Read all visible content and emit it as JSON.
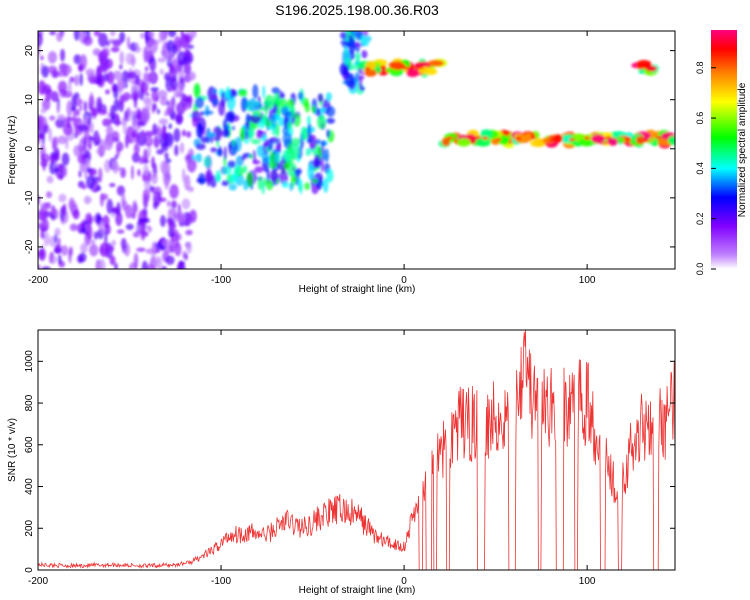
{
  "title": "S196.2025.198.00.36.R03",
  "chart_data": [
    {
      "type": "heatmap",
      "title": "S196.2025.198.00.36.R03",
      "xlabel": "Height of straight line (km)",
      "ylabel": "Frequency (Hz)",
      "xlim": [
        -200,
        148
      ],
      "ylim": [
        -24.5,
        24
      ],
      "x_ticks": [
        "-200",
        "-100",
        "0",
        "100"
      ],
      "y_ticks": [
        "20",
        "10",
        "0",
        "-10",
        "-20"
      ],
      "colorbar": {
        "label": "Normalized spectral amplitude",
        "range": [
          0,
          0.95
        ],
        "ticks": [
          "0.0",
          "0.2",
          "0.4",
          "0.6",
          "0.8"
        ],
        "colors": [
          "#ffffff",
          "#a040ff",
          "#0000ff",
          "#00ffff",
          "#00ff00",
          "#ffff00",
          "#ff8000",
          "#ff0000",
          "#ff0080"
        ]
      },
      "features": [
        {
          "region": "scattered noise",
          "x_range": [
            -200,
            -115
          ],
          "freq_range": [
            -24.5,
            24
          ],
          "amplitude": 0.15
        },
        {
          "region": "diffuse band",
          "x_range": [
            -115,
            -40
          ],
          "freq_range": [
            -8,
            12
          ],
          "amplitude": 0.35
        },
        {
          "region": "blob",
          "x_range": [
            -33,
            -20
          ],
          "freq_range": [
            12,
            24
          ],
          "amplitude": 0.3
        },
        {
          "region": "tone",
          "x_range": [
            -23,
            20
          ],
          "freq_range": [
            14,
            19
          ],
          "amplitude": 0.85
        },
        {
          "region": "tone",
          "x_range": [
            22,
            148
          ],
          "freq_range": [
            0,
            4
          ],
          "amplitude": 0.85
        },
        {
          "region": "tone",
          "x_range": [
            126,
            138
          ],
          "freq_range": [
            15,
            18
          ],
          "amplitude": 0.9
        }
      ]
    },
    {
      "type": "line",
      "xlabel": "Height of straight line (km)",
      "ylabel": "SNR (10 * v/v)",
      "xlim": [
        -200,
        148
      ],
      "ylim": [
        0,
        1150
      ],
      "x_ticks": [
        "-200",
        "-100",
        "0",
        "100"
      ],
      "y_ticks": [
        "0",
        "200",
        "400",
        "600",
        "800",
        "1000"
      ],
      "color": "#ee3333",
      "series": [
        {
          "x": [
            -200,
            -180,
            -160,
            -140,
            -125,
            -115,
            -105,
            -95,
            -85,
            -75,
            -65,
            -55,
            -45,
            -35,
            -25,
            -15,
            -10,
            -5,
            0,
            5,
            10,
            15,
            20,
            25,
            30,
            40,
            50,
            55,
            60,
            62,
            64,
            66,
            68,
            70,
            75,
            80,
            85,
            90,
            95,
            100,
            105,
            110,
            115,
            120,
            125,
            130,
            135,
            140,
            145,
            148
          ],
          "y": [
            25,
            20,
            25,
            20,
            25,
            40,
            80,
            150,
            160,
            150,
            210,
            180,
            230,
            260,
            230,
            140,
            120,
            110,
            100,
            230,
            330,
            420,
            480,
            590,
            620,
            630,
            660,
            650,
            700,
            760,
            860,
            1050,
            830,
            720,
            690,
            700,
            720,
            690,
            710,
            720,
            600,
            470,
            380,
            420,
            530,
            620,
            660,
            620,
            660,
            720
          ]
        }
      ],
      "dropouts_to_zero": [
        [
          8,
          10
        ],
        [
          12,
          15
        ],
        [
          16,
          18
        ],
        [
          23,
          25
        ],
        [
          40,
          44
        ],
        [
          57,
          61
        ],
        [
          73,
          75
        ],
        [
          83,
          87
        ],
        [
          93,
          95
        ],
        [
          107,
          110
        ],
        [
          117,
          119
        ],
        [
          136,
          139
        ]
      ]
    }
  ]
}
